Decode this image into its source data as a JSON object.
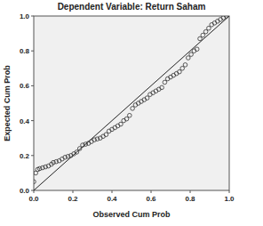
{
  "chart_data": {
    "type": "scatter",
    "title": "Dependent Variable: Return Saham",
    "x_label": "Observed Cum Prob",
    "y_label": "Expected Cum Prob",
    "xlim": [
      0,
      1
    ],
    "ylim": [
      0,
      1
    ],
    "xticks": [
      {
        "value": 0,
        "label": "0.0"
      },
      {
        "value": 0.2,
        "label": "0.2"
      },
      {
        "value": 0.4,
        "label": "0.4"
      },
      {
        "value": 0.6,
        "label": "0.6"
      },
      {
        "value": 0.8,
        "label": "0.8"
      },
      {
        "value": 1,
        "label": "1.0"
      }
    ],
    "yticks": [
      {
        "value": 0,
        "label": "0.0"
      },
      {
        "value": 0.2,
        "label": "0.2"
      },
      {
        "value": 0.4,
        "label": "0.4"
      },
      {
        "value": 0.6,
        "label": "0.6"
      },
      {
        "value": 0.8,
        "label": "0.8"
      },
      {
        "value": 1,
        "label": "1.0"
      }
    ],
    "grid": false,
    "marker": "open-circle",
    "color": "#333333",
    "x": [
      0.0,
      0.01,
      0.02,
      0.03,
      0.045,
      0.06,
      0.075,
      0.09,
      0.1,
      0.115,
      0.13,
      0.145,
      0.16,
      0.175,
      0.19,
      0.205,
      0.22,
      0.235,
      0.25,
      0.265,
      0.28,
      0.295,
      0.31,
      0.325,
      0.34,
      0.355,
      0.37,
      0.385,
      0.4,
      0.415,
      0.43,
      0.445,
      0.46,
      0.475,
      0.49,
      0.505,
      0.52,
      0.535,
      0.55,
      0.565,
      0.58,
      0.595,
      0.61,
      0.625,
      0.64,
      0.655,
      0.67,
      0.685,
      0.7,
      0.715,
      0.73,
      0.745,
      0.76,
      0.775,
      0.79,
      0.805,
      0.82,
      0.835,
      0.85,
      0.865,
      0.88,
      0.895,
      0.91,
      0.925,
      0.94,
      0.955,
      0.97,
      0.985
    ],
    "values": [
      0.05,
      0.1,
      0.12,
      0.125,
      0.13,
      0.135,
      0.14,
      0.15,
      0.16,
      0.165,
      0.17,
      0.18,
      0.19,
      0.195,
      0.2,
      0.21,
      0.22,
      0.24,
      0.26,
      0.265,
      0.27,
      0.28,
      0.29,
      0.295,
      0.3,
      0.31,
      0.32,
      0.34,
      0.35,
      0.36,
      0.37,
      0.38,
      0.4,
      0.41,
      0.43,
      0.47,
      0.49,
      0.5,
      0.51,
      0.52,
      0.53,
      0.55,
      0.56,
      0.57,
      0.58,
      0.59,
      0.62,
      0.64,
      0.65,
      0.66,
      0.67,
      0.68,
      0.7,
      0.72,
      0.76,
      0.78,
      0.8,
      0.81,
      0.87,
      0.89,
      0.91,
      0.93,
      0.95,
      0.96,
      0.97,
      0.98,
      0.99,
      1.0
    ]
  }
}
